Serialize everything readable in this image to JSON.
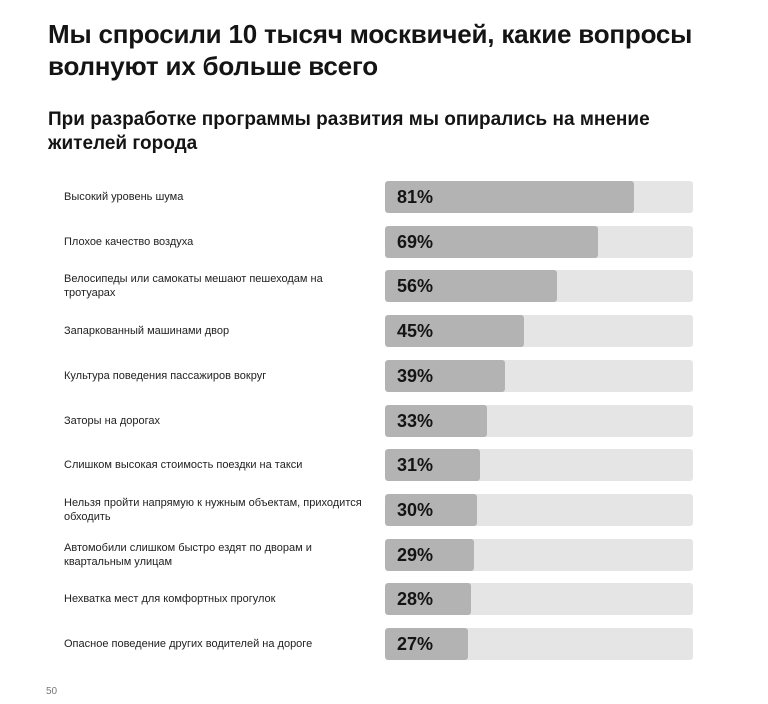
{
  "title": "Мы спросили 10 тысяч москвичей, какие вопросы волнуют их больше всего",
  "subtitle": "При разработке программы развития мы опирались на мнение жителей города",
  "page_number": "50",
  "colors": {
    "track": "#e5e5e5",
    "fill": "#b3b3b3",
    "text": "#141414"
  },
  "chart_data": {
    "type": "bar",
    "orientation": "horizontal",
    "title": "При разработке программы развития мы опирались на мнение жителей города",
    "categories": [
      "Высокий уровень шума",
      "Плохое качество воздуха",
      "Велосипеды или самокаты мешают пешеходам на тротуарах",
      "Запаркованный машинами двор",
      "Культура поведения пассажиров вокруг",
      "Заторы на дорогах",
      "Слишком высокая стоимость поездки на такси",
      "Нельзя пройти напрямую к нужным объектам, приходится обходить",
      "Автомобили слишком быстро ездят по дворам и квартальным улицам",
      "Нехватка мест для комфортных прогулок",
      "Опасное поведение других водителей на дороге"
    ],
    "values": [
      81,
      69,
      56,
      45,
      39,
      33,
      31,
      30,
      29,
      28,
      27
    ],
    "value_labels": [
      "81%",
      "69%",
      "56%",
      "45%",
      "39%",
      "33%",
      "31%",
      "30%",
      "29%",
      "28%",
      "27%"
    ],
    "xlim": [
      0,
      100
    ],
    "grid": false,
    "legend": "none"
  }
}
